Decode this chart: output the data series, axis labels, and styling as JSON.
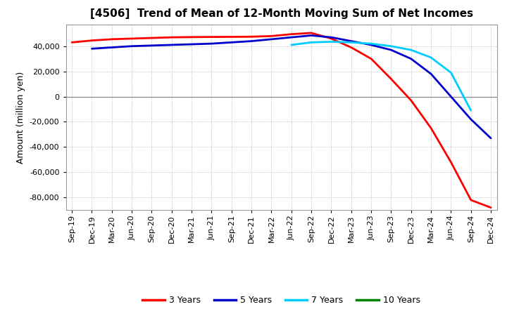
{
  "title": "[4506]  Trend of Mean of 12-Month Moving Sum of Net Incomes",
  "ylabel": "Amount (million yen)",
  "background_color": "#ffffff",
  "grid_color": "#aaaaaa",
  "x_labels": [
    "Sep-19",
    "Dec-19",
    "Mar-20",
    "Jun-20",
    "Sep-20",
    "Dec-20",
    "Mar-21",
    "Jun-21",
    "Sep-21",
    "Dec-21",
    "Mar-22",
    "Jun-22",
    "Sep-22",
    "Dec-22",
    "Mar-23",
    "Jun-23",
    "Sep-23",
    "Dec-23",
    "Mar-24",
    "Jun-24",
    "Sep-24",
    "Dec-24"
  ],
  "ylim": [
    -90000,
    57000
  ],
  "yticks": [
    -80000,
    -60000,
    -40000,
    -20000,
    0,
    20000,
    40000
  ],
  "series": {
    "3 Years": {
      "color": "#ff0000",
      "linewidth": 2.0,
      "values": [
        43000,
        44500,
        45500,
        46000,
        46500,
        47000,
        47200,
        47300,
        47400,
        47500,
        48000,
        49500,
        50500,
        46000,
        39000,
        30000,
        14000,
        -3000,
        -25000,
        -52000,
        -82000,
        -88000
      ]
    },
    "5 Years": {
      "color": "#0000cc",
      "linewidth": 2.0,
      "values": [
        null,
        38000,
        39000,
        40000,
        40500,
        41000,
        41500,
        42000,
        43000,
        44000,
        45500,
        47000,
        48500,
        47000,
        44000,
        41000,
        37000,
        30000,
        18000,
        0,
        -18000,
        -33000
      ]
    },
    "7 Years": {
      "color": "#00ccff",
      "linewidth": 2.0,
      "values": [
        null,
        null,
        null,
        null,
        null,
        null,
        null,
        null,
        null,
        null,
        null,
        41000,
        43000,
        43500,
        43000,
        42000,
        40000,
        37000,
        31000,
        19000,
        -11000,
        null
      ]
    },
    "10 Years": {
      "color": "#008000",
      "linewidth": 2.0,
      "values": [
        null,
        null,
        null,
        null,
        null,
        null,
        null,
        null,
        null,
        null,
        null,
        null,
        null,
        null,
        null,
        null,
        null,
        null,
        null,
        null,
        null,
        null
      ]
    }
  },
  "legend_labels": [
    "3 Years",
    "5 Years",
    "7 Years",
    "10 Years"
  ],
  "legend_colors": [
    "#ff0000",
    "#0000cc",
    "#00ccff",
    "#008000"
  ]
}
